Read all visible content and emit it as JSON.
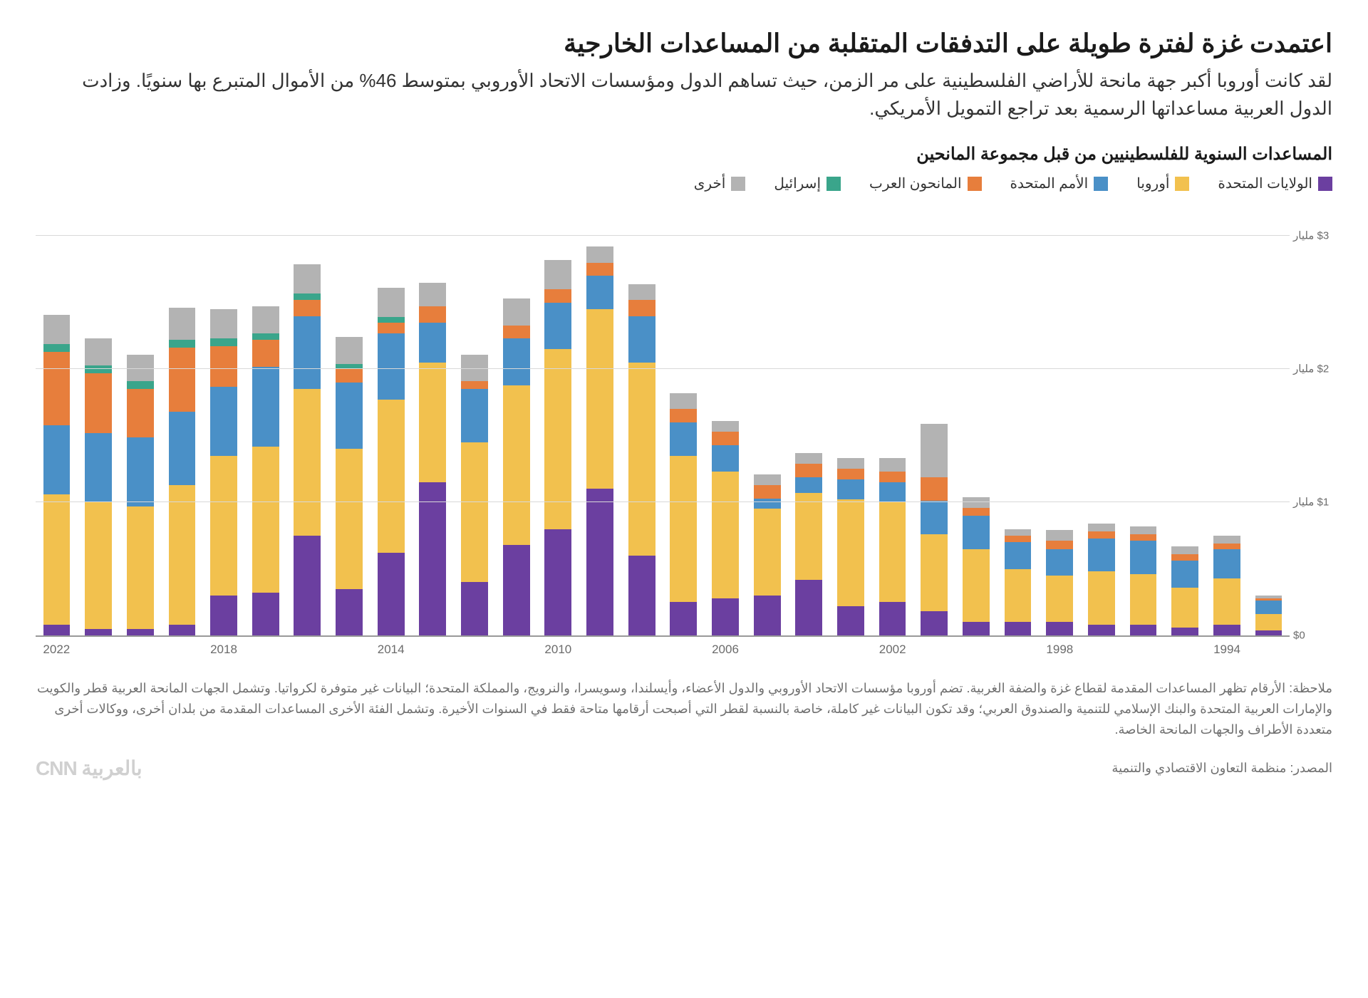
{
  "title": "اعتمدت غزة لفترة طويلة على التدفقات المتقلبة من المساعدات الخارجية",
  "subtitle": "لقد كانت أوروبا أكبر جهة مانحة للأراضي الفلسطينية على مر الزمن، حيث تساهم الدول ومؤسسات الاتحاد الأوروبي بمتوسط 46% من الأموال المتبرع بها سنويًا. وزادت الدول العربية مساعداتها الرسمية بعد تراجع التمويل الأمريكي.",
  "chart": {
    "type": "stacked-bar",
    "chart_title": "المساعدات السنوية للفلسطينيين من قبل مجموعة المانحين",
    "ymax": 3.2,
    "ylabels": [
      {
        "v": 0,
        "text": "$0"
      },
      {
        "v": 1,
        "text": "$1\nمليار"
      },
      {
        "v": 2,
        "text": "$2\nمليار"
      },
      {
        "v": 3,
        "text": "$3\nمليار"
      }
    ],
    "gridlines": [
      1,
      2,
      3
    ],
    "xticks": [
      {
        "year": 2022,
        "idx": 0
      },
      {
        "year": 2018,
        "idx": 4
      },
      {
        "year": 2014,
        "idx": 8
      },
      {
        "year": 2010,
        "idx": 12
      },
      {
        "year": 2006,
        "idx": 16
      },
      {
        "year": 2002,
        "idx": 20
      },
      {
        "year": 1998,
        "idx": 24
      },
      {
        "year": 1994,
        "idx": 28
      }
    ],
    "series": [
      {
        "key": "us",
        "label": "الولايات المتحدة",
        "color": "#6b3fa0"
      },
      {
        "key": "europe",
        "label": "أوروبا",
        "color": "#f2c14e"
      },
      {
        "key": "un",
        "label": "الأمم المتحدة",
        "color": "#4a90c7"
      },
      {
        "key": "arab",
        "label": "المانحون العرب",
        "color": "#e77e3c"
      },
      {
        "key": "israel",
        "label": "إسرائيل",
        "color": "#3aa58b"
      },
      {
        "key": "other",
        "label": "أخرى",
        "color": "#b3b3b3"
      }
    ],
    "years": [
      {
        "year": 2022,
        "us": 0.08,
        "europe": 0.98,
        "un": 0.52,
        "arab": 0.55,
        "israel": 0.06,
        "other": 0.22
      },
      {
        "year": 2021,
        "us": 0.05,
        "europe": 0.95,
        "un": 0.52,
        "arab": 0.45,
        "israel": 0.06,
        "other": 0.2
      },
      {
        "year": 2020,
        "us": 0.05,
        "europe": 0.92,
        "un": 0.52,
        "arab": 0.36,
        "israel": 0.06,
        "other": 0.2
      },
      {
        "year": 2019,
        "us": 0.08,
        "europe": 1.05,
        "un": 0.55,
        "arab": 0.48,
        "israel": 0.06,
        "other": 0.24
      },
      {
        "year": 2018,
        "us": 0.3,
        "europe": 1.05,
        "un": 0.52,
        "arab": 0.3,
        "israel": 0.06,
        "other": 0.22
      },
      {
        "year": 2017,
        "us": 0.32,
        "europe": 1.1,
        "un": 0.6,
        "arab": 0.2,
        "israel": 0.05,
        "other": 0.2
      },
      {
        "year": 2016,
        "us": 0.75,
        "europe": 1.1,
        "un": 0.55,
        "arab": 0.12,
        "israel": 0.05,
        "other": 0.22
      },
      {
        "year": 2015,
        "us": 0.35,
        "europe": 1.05,
        "un": 0.5,
        "arab": 0.1,
        "israel": 0.04,
        "other": 0.2
      },
      {
        "year": 2014,
        "us": 0.62,
        "europe": 1.15,
        "un": 0.5,
        "arab": 0.08,
        "israel": 0.04,
        "other": 0.22
      },
      {
        "year": 2013,
        "us": 1.15,
        "europe": 0.9,
        "un": 0.3,
        "arab": 0.12,
        "israel": 0.0,
        "other": 0.18
      },
      {
        "year": 2012,
        "us": 0.4,
        "europe": 1.05,
        "un": 0.4,
        "arab": 0.06,
        "israel": 0.0,
        "other": 0.2
      },
      {
        "year": 2011,
        "us": 0.68,
        "europe": 1.2,
        "un": 0.35,
        "arab": 0.1,
        "israel": 0.0,
        "other": 0.2
      },
      {
        "year": 2010,
        "us": 0.8,
        "europe": 1.35,
        "un": 0.35,
        "arab": 0.1,
        "israel": 0.0,
        "other": 0.22
      },
      {
        "year": 2009,
        "us": 1.1,
        "europe": 1.35,
        "un": 0.25,
        "arab": 0.1,
        "israel": 0.0,
        "other": 0.12
      },
      {
        "year": 2008,
        "us": 0.6,
        "europe": 1.45,
        "un": 0.35,
        "arab": 0.12,
        "israel": 0.0,
        "other": 0.12
      },
      {
        "year": 2007,
        "us": 0.25,
        "europe": 1.1,
        "un": 0.25,
        "arab": 0.1,
        "israel": 0.0,
        "other": 0.12
      },
      {
        "year": 2006,
        "us": 0.28,
        "europe": 0.95,
        "un": 0.2,
        "arab": 0.1,
        "israel": 0.0,
        "other": 0.08
      },
      {
        "year": 2005,
        "us": 0.3,
        "europe": 0.65,
        "un": 0.08,
        "arab": 0.1,
        "israel": 0.0,
        "other": 0.08
      },
      {
        "year": 2004,
        "us": 0.42,
        "europe": 0.65,
        "un": 0.12,
        "arab": 0.1,
        "israel": 0.0,
        "other": 0.08
      },
      {
        "year": 2003,
        "us": 0.22,
        "europe": 0.8,
        "un": 0.15,
        "arab": 0.08,
        "israel": 0.0,
        "other": 0.08
      },
      {
        "year": 2002,
        "us": 0.25,
        "europe": 0.75,
        "un": 0.15,
        "arab": 0.08,
        "israel": 0.0,
        "other": 0.1
      },
      {
        "year": 2001,
        "us": 0.18,
        "europe": 0.58,
        "un": 0.25,
        "arab": 0.18,
        "israel": 0.0,
        "other": 0.4
      },
      {
        "year": 2000,
        "us": 0.1,
        "europe": 0.55,
        "un": 0.25,
        "arab": 0.06,
        "israel": 0.0,
        "other": 0.08
      },
      {
        "year": 1999,
        "us": 0.1,
        "europe": 0.4,
        "un": 0.2,
        "arab": 0.05,
        "israel": 0.0,
        "other": 0.05
      },
      {
        "year": 1998,
        "us": 0.1,
        "europe": 0.35,
        "un": 0.2,
        "arab": 0.06,
        "israel": 0.0,
        "other": 0.08
      },
      {
        "year": 1997,
        "us": 0.08,
        "europe": 0.4,
        "un": 0.25,
        "arab": 0.05,
        "israel": 0.0,
        "other": 0.06
      },
      {
        "year": 1996,
        "us": 0.08,
        "europe": 0.38,
        "un": 0.25,
        "arab": 0.05,
        "israel": 0.0,
        "other": 0.06
      },
      {
        "year": 1995,
        "us": 0.06,
        "europe": 0.3,
        "un": 0.2,
        "arab": 0.05,
        "israel": 0.0,
        "other": 0.06
      },
      {
        "year": 1994,
        "us": 0.08,
        "europe": 0.35,
        "un": 0.22,
        "arab": 0.04,
        "israel": 0.0,
        "other": 0.06
      },
      {
        "year": 1993,
        "us": 0.04,
        "europe": 0.12,
        "un": 0.1,
        "arab": 0.02,
        "israel": 0.0,
        "other": 0.02
      }
    ],
    "grid_color": "#d9d9d9",
    "axis_color": "#999999",
    "background_color": "#ffffff",
    "bar_gap_pct": 1.2
  },
  "note": "ملاحظة: الأرقام تظهر المساعدات المقدمة لقطاع غزة والضفة الغربية. تضم أوروبا مؤسسات الاتحاد الأوروبي والدول الأعضاء، وأيسلندا، وسويسرا، والنرويج، والمملكة المتحدة؛ البيانات غير متوفرة لكرواتيا. وتشمل الجهات المانحة العربية قطر والكويت والإمارات العربية المتحدة والبنك الإسلامي للتنمية والصندوق العربي؛ وقد تكون البيانات غير كاملة، خاصة بالنسبة لقطر التي أصبحت أرقامها متاحة فقط في السنوات الأخيرة. وتشمل الفئة الأخرى المساعدات المقدمة من بلدان أخرى، ووكالات أخرى متعددة الأطراف والجهات المانحة الخاصة.",
  "source": "المصدر: منظمة التعاون الاقتصادي والتنمية",
  "brand": "CNN بالعربية"
}
